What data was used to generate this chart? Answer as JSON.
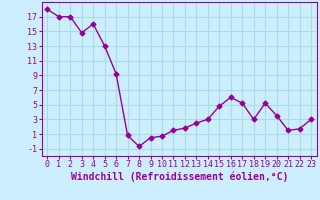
{
  "x": [
    0,
    1,
    2,
    3,
    4,
    5,
    6,
    7,
    8,
    9,
    10,
    11,
    12,
    13,
    14,
    15,
    16,
    17,
    18,
    19,
    20,
    21,
    22,
    23
  ],
  "y": [
    18,
    17,
    17,
    14.8,
    16,
    13,
    9.2,
    0.8,
    -0.7,
    0.5,
    0.7,
    1.5,
    1.8,
    2.5,
    3.0,
    4.8,
    6.0,
    5.2,
    3.0,
    5.2,
    3.5,
    1.5,
    1.7,
    3.0
  ],
  "line_color": "#990099",
  "marker": "D",
  "marker_size": 2.5,
  "xlabel": "Windchill (Refroidissement éolien,°C)",
  "xlabel_fontsize": 7,
  "ylim": [
    -2,
    19
  ],
  "yticks": [
    -1,
    1,
    3,
    5,
    7,
    9,
    11,
    13,
    15,
    17
  ],
  "xticks": [
    0,
    1,
    2,
    3,
    4,
    5,
    6,
    7,
    8,
    9,
    10,
    11,
    12,
    13,
    14,
    15,
    16,
    17,
    18,
    19,
    20,
    21,
    22,
    23
  ],
  "bg_color": "#cceeff",
  "grid_color": "#aadddd",
  "tick_color": "#990099",
  "tick_fontsize": 6,
  "line_width": 1.0
}
